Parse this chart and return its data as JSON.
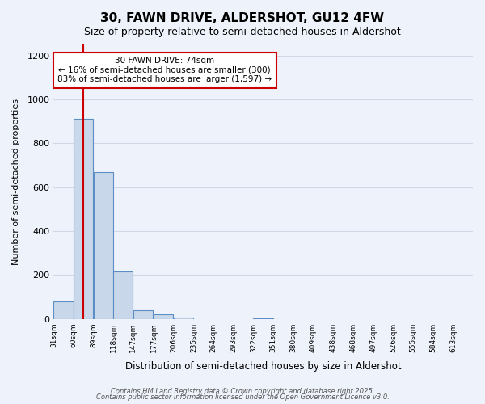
{
  "title": "30, FAWN DRIVE, ALDERSHOT, GU12 4FW",
  "subtitle": "Size of property relative to semi-detached houses in Aldershot",
  "xlabel": "Distribution of semi-detached houses by size in Aldershot",
  "ylabel": "Number of semi-detached properties",
  "bar_values": [
    80,
    910,
    670,
    215,
    38,
    20,
    5,
    0,
    0,
    0,
    3,
    0,
    0,
    0,
    0,
    0,
    0,
    0,
    0,
    0
  ],
  "bin_labels": [
    "31sqm",
    "60sqm",
    "89sqm",
    "118sqm",
    "147sqm",
    "177sqm",
    "206sqm",
    "235sqm",
    "264sqm",
    "293sqm",
    "322sqm",
    "351sqm",
    "380sqm",
    "409sqm",
    "438sqm",
    "468sqm",
    "497sqm",
    "526sqm",
    "555sqm",
    "584sqm",
    "613sqm"
  ],
  "bin_edges": [
    31,
    60,
    89,
    118,
    147,
    177,
    206,
    235,
    264,
    293,
    322,
    351,
    380,
    409,
    438,
    468,
    497,
    526,
    555,
    584,
    613
  ],
  "ylim": [
    0,
    1250
  ],
  "yticks": [
    0,
    200,
    400,
    600,
    800,
    1000,
    1200
  ],
  "bar_color": "#c8d8ea",
  "bar_edge_color": "#5b8ec4",
  "red_line_x": 74,
  "annotation_title": "30 FAWN DRIVE: 74sqm",
  "annotation_line1": "← 16% of semi-detached houses are smaller (300)",
  "annotation_line2": "83% of semi-detached houses are larger (1,597) →",
  "annotation_box_color": "#ffffff",
  "annotation_box_edge": "#cc0000",
  "red_line_color": "#cc0000",
  "grid_color": "#d0d8e8",
  "background_color": "#eef2fb",
  "footer1": "Contains HM Land Registry data © Crown copyright and database right 2025.",
  "footer2": "Contains public sector information licensed under the Open Government Licence v3.0."
}
